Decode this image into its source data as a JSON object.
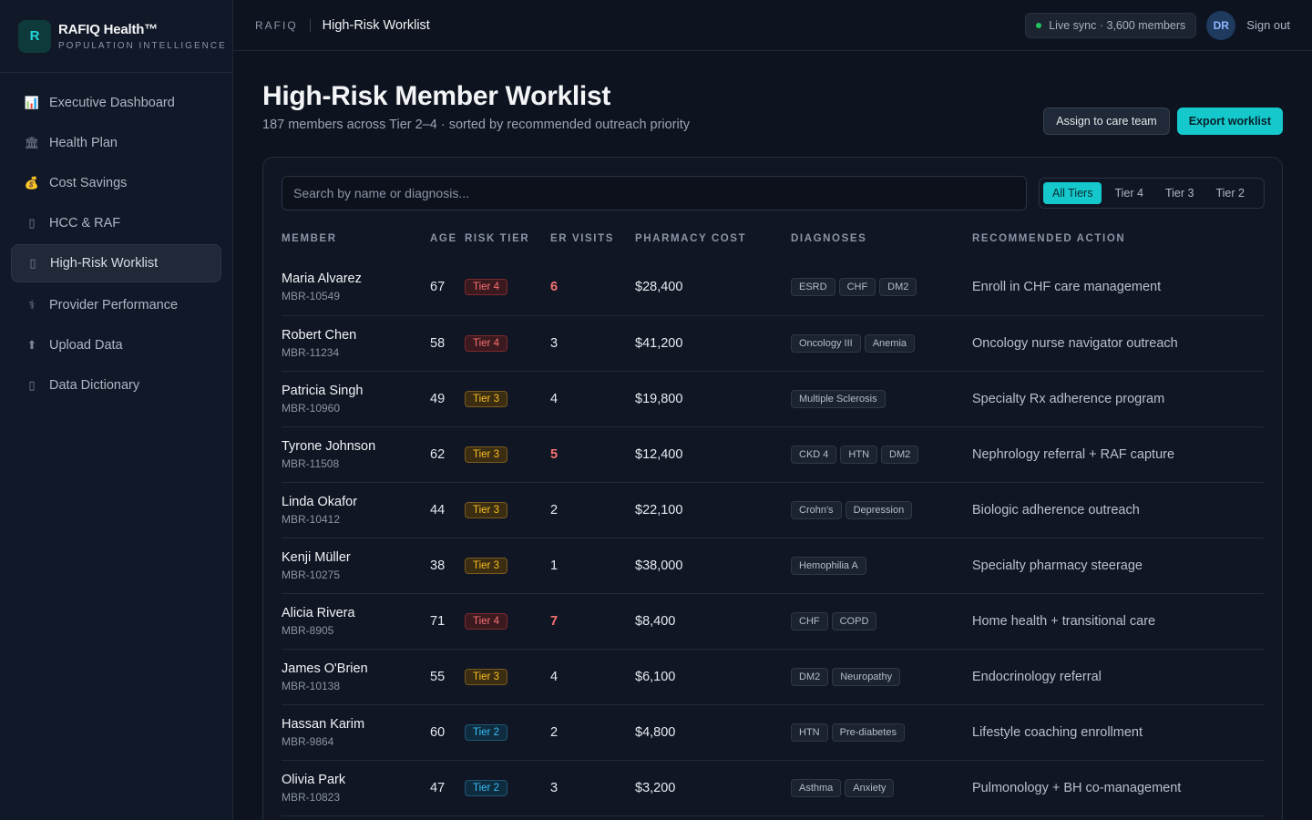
{
  "brand": {
    "logo_letter": "R",
    "name": "RAFIQ Health™",
    "subtitle": "POPULATION INTELLIGENCE"
  },
  "nav": [
    {
      "label": "Executive Dashboard",
      "icon": "bar-chart-icon",
      "glyph": "📊"
    },
    {
      "label": "Health Plan",
      "icon": "bank-icon",
      "glyph": "🏛"
    },
    {
      "label": "Cost Savings",
      "icon": "money-bag-icon",
      "glyph": "💰"
    },
    {
      "label": "HCC & RAF",
      "icon": "document-icon",
      "glyph": "▯"
    },
    {
      "label": "High-Risk Worklist",
      "icon": "alert-icon",
      "glyph": "▯",
      "active": true
    },
    {
      "label": "Provider Performance",
      "icon": "stethoscope-icon",
      "glyph": "⚕"
    },
    {
      "label": "Upload Data",
      "icon": "upload-icon",
      "glyph": "⬆"
    },
    {
      "label": "Data Dictionary",
      "icon": "book-icon",
      "glyph": "▯"
    }
  ],
  "topbar": {
    "root": "RAFIQ",
    "page": "High-Risk Worklist",
    "sync": "Live sync · 3,600 members",
    "avatar": "DR",
    "signout": "Sign out"
  },
  "header": {
    "title": "High-Risk Member Worklist",
    "subtitle": "187 members across Tier 2–4 · sorted by recommended outreach priority",
    "assign_label": "Assign to care team",
    "export_label": "Export worklist"
  },
  "search": {
    "placeholder": "Search by name or diagnosis..."
  },
  "tier_filters": [
    "All Tiers",
    "Tier 4",
    "Tier 3",
    "Tier 2"
  ],
  "tier_filter_selected": "All Tiers",
  "colors": {
    "accent": "#14c8cc",
    "tier4": "#f87171",
    "tier3": "#fbbf24",
    "tier2": "#38bdf8"
  },
  "table": {
    "columns": [
      "MEMBER",
      "AGE",
      "RISK TIER",
      "ER VISITS",
      "PHARMACY COST",
      "DIAGNOSES",
      "RECOMMENDED ACTION"
    ],
    "rows": [
      {
        "name": "Maria Alvarez",
        "id": "MBR-10549",
        "age": "67",
        "tier": "Tier 4",
        "er": "6",
        "er_high": true,
        "cost": "$28,400",
        "dx": [
          "ESRD",
          "CHF",
          "DM2"
        ],
        "action": "Enroll in CHF care management"
      },
      {
        "name": "Robert Chen",
        "id": "MBR-11234",
        "age": "58",
        "tier": "Tier 4",
        "er": "3",
        "er_high": false,
        "cost": "$41,200",
        "dx": [
          "Oncology III",
          "Anemia"
        ],
        "action": "Oncology nurse navigator outreach"
      },
      {
        "name": "Patricia Singh",
        "id": "MBR-10960",
        "age": "49",
        "tier": "Tier 3",
        "er": "4",
        "er_high": false,
        "cost": "$19,800",
        "dx": [
          "Multiple Sclerosis"
        ],
        "action": "Specialty Rx adherence program"
      },
      {
        "name": "Tyrone Johnson",
        "id": "MBR-11508",
        "age": "62",
        "tier": "Tier 3",
        "er": "5",
        "er_high": true,
        "cost": "$12,400",
        "dx": [
          "CKD 4",
          "HTN",
          "DM2"
        ],
        "action": "Nephrology referral + RAF capture"
      },
      {
        "name": "Linda Okafor",
        "id": "MBR-10412",
        "age": "44",
        "tier": "Tier 3",
        "er": "2",
        "er_high": false,
        "cost": "$22,100",
        "dx": [
          "Crohn's",
          "Depression"
        ],
        "action": "Biologic adherence outreach"
      },
      {
        "name": "Kenji Müller",
        "id": "MBR-10275",
        "age": "38",
        "tier": "Tier 3",
        "er": "1",
        "er_high": false,
        "cost": "$38,000",
        "dx": [
          "Hemophilia A"
        ],
        "action": "Specialty pharmacy steerage"
      },
      {
        "name": "Alicia Rivera",
        "id": "MBR-8905",
        "age": "71",
        "tier": "Tier 4",
        "er": "7",
        "er_high": true,
        "cost": "$8,400",
        "dx": [
          "CHF",
          "COPD"
        ],
        "action": "Home health + transitional care"
      },
      {
        "name": "James O'Brien",
        "id": "MBR-10138",
        "age": "55",
        "tier": "Tier 3",
        "er": "4",
        "er_high": false,
        "cost": "$6,100",
        "dx": [
          "DM2",
          "Neuropathy"
        ],
        "action": "Endocrinology referral"
      },
      {
        "name": "Hassan Karim",
        "id": "MBR-9864",
        "age": "60",
        "tier": "Tier 2",
        "er": "2",
        "er_high": false,
        "cost": "$4,800",
        "dx": [
          "HTN",
          "Pre-diabetes"
        ],
        "action": "Lifestyle coaching enrollment"
      },
      {
        "name": "Olivia Park",
        "id": "MBR-10823",
        "age": "47",
        "tier": "Tier 2",
        "er": "3",
        "er_high": false,
        "cost": "$3,200",
        "dx": [
          "Asthma",
          "Anxiety"
        ],
        "action": "Pulmonology + BH co-management"
      }
    ]
  }
}
